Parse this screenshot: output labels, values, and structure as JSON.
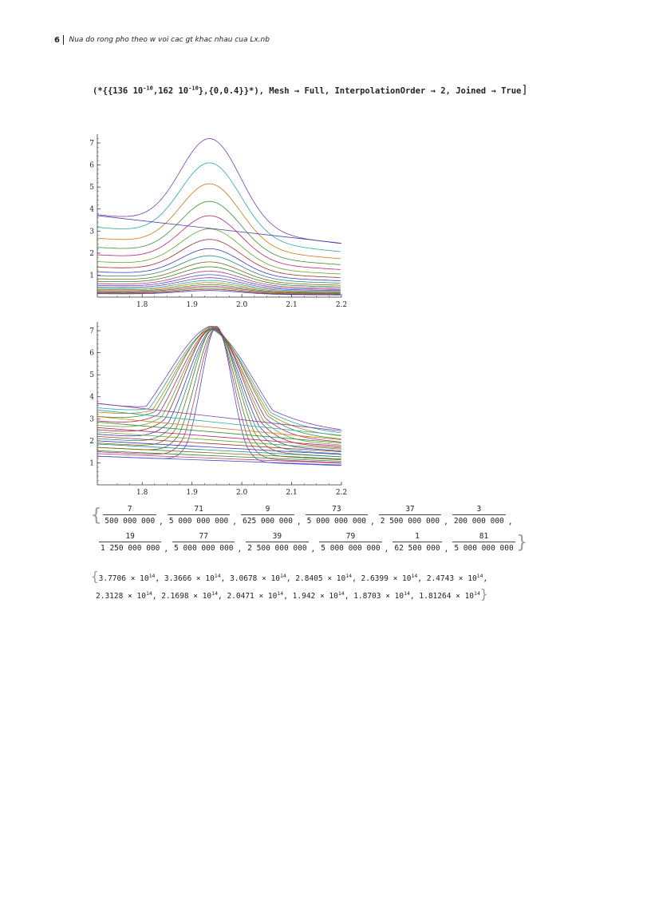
{
  "header": {
    "page_number": "6",
    "title": "Nua do rong pho theo w voi cac gt khac nhau cua Lx.nb"
  },
  "code_line": {
    "prefix": "(*{{136 10",
    "exp1": "-10",
    "mid": ",162 10",
    "exp2": "-10",
    "suffix": "},{0,0.4}}*), Mesh → Full, InterpolationOrder → 2, Joined → True",
    "close": "]"
  },
  "chart_data": [
    {
      "type": "line",
      "title": "",
      "x_ticks": [
        "1.8",
        "1.9",
        "2.0",
        "2.1",
        "2.2"
      ],
      "y_ticks": [
        "1",
        "2",
        "3",
        "4",
        "5",
        "6",
        "7"
      ],
      "xlim": [
        1.71,
        2.2
      ],
      "ylim": [
        0,
        7.4
      ],
      "series_count": 24,
      "peak_x": 1.935,
      "peaks": [
        7.2,
        6.1,
        5.15,
        4.35,
        3.7,
        3.1,
        2.62,
        2.2,
        1.88,
        1.6,
        1.38,
        1.18,
        1.02,
        0.88,
        0.76,
        0.66,
        0.57,
        0.49,
        0.42,
        0.36,
        0.3
      ],
      "straight_line": {
        "y_start": 3.7,
        "y_end": 2.45
      }
    },
    {
      "type": "line",
      "title": "",
      "x_ticks": [
        "1.8",
        "1.9",
        "2.0",
        "2.1",
        "2.2"
      ],
      "y_ticks": [
        "1",
        "2",
        "3",
        "4",
        "5",
        "6",
        "7"
      ],
      "xlim": [
        1.71,
        2.2
      ],
      "ylim": [
        0,
        7.4
      ],
      "series_count": 13,
      "peak": 7.1,
      "straight_lines": [
        {
          "y_start": 3.7,
          "y_end": 2.45
        },
        {
          "y_start": 3.4,
          "y_end": 2.25
        },
        {
          "y_start": 3.1,
          "y_end": 2.05
        },
        {
          "y_start": 2.85,
          "y_end": 1.9
        },
        {
          "y_start": 2.6,
          "y_end": 1.75
        },
        {
          "y_start": 2.4,
          "y_end": 1.62
        },
        {
          "y_start": 2.2,
          "y_end": 1.5
        },
        {
          "y_start": 2.0,
          "y_end": 1.38
        },
        {
          "y_start": 1.85,
          "y_end": 1.27
        },
        {
          "y_start": 1.7,
          "y_end": 1.17
        },
        {
          "y_start": 1.55,
          "y_end": 1.07
        },
        {
          "y_start": 1.42,
          "y_end": 0.98
        },
        {
          "y_start": 1.3,
          "y_end": 0.9
        }
      ]
    }
  ],
  "fractions_row1": [
    {
      "n": "7",
      "d": "500 000 000"
    },
    {
      "n": "71",
      "d": "5 000 000 000"
    },
    {
      "n": "9",
      "d": "625 000 000"
    },
    {
      "n": "73",
      "d": "5 000 000 000"
    },
    {
      "n": "37",
      "d": "2 500 000 000"
    },
    {
      "n": "3",
      "d": "200 000 000"
    }
  ],
  "fractions_row2": [
    {
      "n": "19",
      "d": "1 250 000 000"
    },
    {
      "n": "77",
      "d": "5 000 000 000"
    },
    {
      "n": "39",
      "d": "2 500 000 000"
    },
    {
      "n": "79",
      "d": "5 000 000 000"
    },
    {
      "n": "1",
      "d": "62 500 000"
    },
    {
      "n": "81",
      "d": "5 000 000 000"
    }
  ],
  "numbers_row1": [
    "3.7706",
    "3.3666",
    "3.0678",
    "2.8405",
    "2.6399",
    "2.4743"
  ],
  "numbers_row2": [
    "2.3128",
    "2.1698",
    "2.0471",
    "1.942",
    "1.8703",
    "1.81264"
  ],
  "times_ten": "× 10",
  "exponent": "14",
  "colors": {
    "series": [
      "#7b3fa6",
      "#2aa6a6",
      "#c47a12",
      "#3e8f2f",
      "#b2246f",
      "#6aa12a",
      "#a03030",
      "#3b3bb2",
      "#1f8a86",
      "#7d6a12",
      "#2f7f30",
      "#b23c6d",
      "#4d4dcf"
    ]
  }
}
